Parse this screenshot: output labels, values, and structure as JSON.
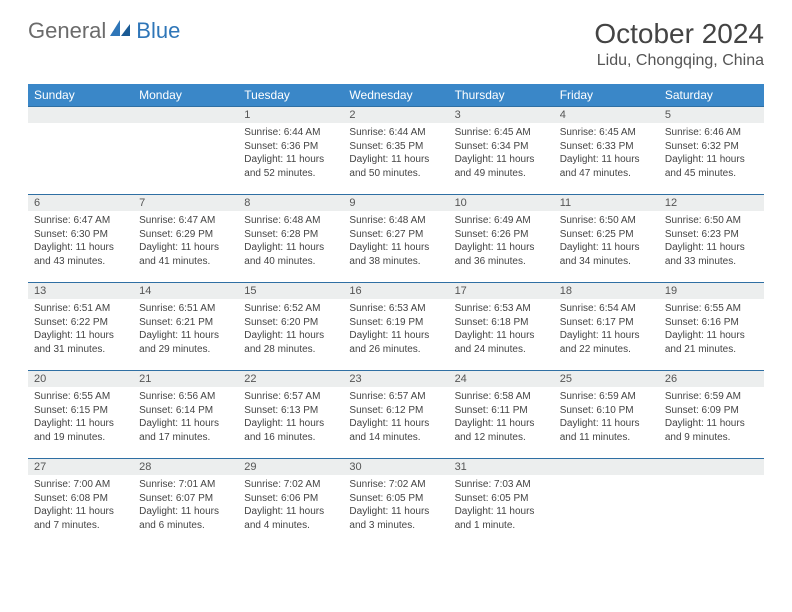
{
  "logo": {
    "text1": "General",
    "text2": "Blue"
  },
  "title": "October 2024",
  "location": "Lidu, Chongqing, China",
  "colors": {
    "header_bg": "#3a87c8",
    "border": "#2f6fa3",
    "daynum_bg": "#eceeee",
    "logo_gray": "#6b6b6b",
    "logo_blue": "#2f76b8"
  },
  "dayNames": [
    "Sunday",
    "Monday",
    "Tuesday",
    "Wednesday",
    "Thursday",
    "Friday",
    "Saturday"
  ],
  "weeks": [
    [
      null,
      null,
      {
        "n": "1",
        "sr": "6:44 AM",
        "ss": "6:36 PM",
        "dl": "11 hours and 52 minutes."
      },
      {
        "n": "2",
        "sr": "6:44 AM",
        "ss": "6:35 PM",
        "dl": "11 hours and 50 minutes."
      },
      {
        "n": "3",
        "sr": "6:45 AM",
        "ss": "6:34 PM",
        "dl": "11 hours and 49 minutes."
      },
      {
        "n": "4",
        "sr": "6:45 AM",
        "ss": "6:33 PM",
        "dl": "11 hours and 47 minutes."
      },
      {
        "n": "5",
        "sr": "6:46 AM",
        "ss": "6:32 PM",
        "dl": "11 hours and 45 minutes."
      }
    ],
    [
      {
        "n": "6",
        "sr": "6:47 AM",
        "ss": "6:30 PM",
        "dl": "11 hours and 43 minutes."
      },
      {
        "n": "7",
        "sr": "6:47 AM",
        "ss": "6:29 PM",
        "dl": "11 hours and 41 minutes."
      },
      {
        "n": "8",
        "sr": "6:48 AM",
        "ss": "6:28 PM",
        "dl": "11 hours and 40 minutes."
      },
      {
        "n": "9",
        "sr": "6:48 AM",
        "ss": "6:27 PM",
        "dl": "11 hours and 38 minutes."
      },
      {
        "n": "10",
        "sr": "6:49 AM",
        "ss": "6:26 PM",
        "dl": "11 hours and 36 minutes."
      },
      {
        "n": "11",
        "sr": "6:50 AM",
        "ss": "6:25 PM",
        "dl": "11 hours and 34 minutes."
      },
      {
        "n": "12",
        "sr": "6:50 AM",
        "ss": "6:23 PM",
        "dl": "11 hours and 33 minutes."
      }
    ],
    [
      {
        "n": "13",
        "sr": "6:51 AM",
        "ss": "6:22 PM",
        "dl": "11 hours and 31 minutes."
      },
      {
        "n": "14",
        "sr": "6:51 AM",
        "ss": "6:21 PM",
        "dl": "11 hours and 29 minutes."
      },
      {
        "n": "15",
        "sr": "6:52 AM",
        "ss": "6:20 PM",
        "dl": "11 hours and 28 minutes."
      },
      {
        "n": "16",
        "sr": "6:53 AM",
        "ss": "6:19 PM",
        "dl": "11 hours and 26 minutes."
      },
      {
        "n": "17",
        "sr": "6:53 AM",
        "ss": "6:18 PM",
        "dl": "11 hours and 24 minutes."
      },
      {
        "n": "18",
        "sr": "6:54 AM",
        "ss": "6:17 PM",
        "dl": "11 hours and 22 minutes."
      },
      {
        "n": "19",
        "sr": "6:55 AM",
        "ss": "6:16 PM",
        "dl": "11 hours and 21 minutes."
      }
    ],
    [
      {
        "n": "20",
        "sr": "6:55 AM",
        "ss": "6:15 PM",
        "dl": "11 hours and 19 minutes."
      },
      {
        "n": "21",
        "sr": "6:56 AM",
        "ss": "6:14 PM",
        "dl": "11 hours and 17 minutes."
      },
      {
        "n": "22",
        "sr": "6:57 AM",
        "ss": "6:13 PM",
        "dl": "11 hours and 16 minutes."
      },
      {
        "n": "23",
        "sr": "6:57 AM",
        "ss": "6:12 PM",
        "dl": "11 hours and 14 minutes."
      },
      {
        "n": "24",
        "sr": "6:58 AM",
        "ss": "6:11 PM",
        "dl": "11 hours and 12 minutes."
      },
      {
        "n": "25",
        "sr": "6:59 AM",
        "ss": "6:10 PM",
        "dl": "11 hours and 11 minutes."
      },
      {
        "n": "26",
        "sr": "6:59 AM",
        "ss": "6:09 PM",
        "dl": "11 hours and 9 minutes."
      }
    ],
    [
      {
        "n": "27",
        "sr": "7:00 AM",
        "ss": "6:08 PM",
        "dl": "11 hours and 7 minutes."
      },
      {
        "n": "28",
        "sr": "7:01 AM",
        "ss": "6:07 PM",
        "dl": "11 hours and 6 minutes."
      },
      {
        "n": "29",
        "sr": "7:02 AM",
        "ss": "6:06 PM",
        "dl": "11 hours and 4 minutes."
      },
      {
        "n": "30",
        "sr": "7:02 AM",
        "ss": "6:05 PM",
        "dl": "11 hours and 3 minutes."
      },
      {
        "n": "31",
        "sr": "7:03 AM",
        "ss": "6:05 PM",
        "dl": "11 hours and 1 minute."
      },
      null,
      null
    ]
  ],
  "labels": {
    "sunrise": "Sunrise: ",
    "sunset": "Sunset: ",
    "daylight": "Daylight: "
  }
}
